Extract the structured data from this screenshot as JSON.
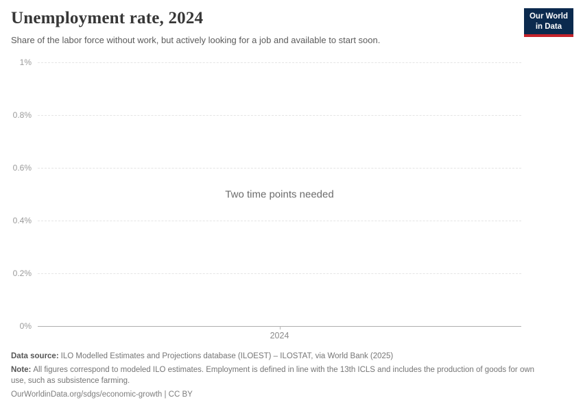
{
  "header": {
    "title": "Unemployment rate, 2024",
    "subtitle": "Share of the labor force without work, but actively looking for a job and available to start soon.",
    "logo": {
      "line1": "Our World",
      "line2": "in Data"
    }
  },
  "chart": {
    "empty_message": "Two time points needed"
  },
  "chart_data": {
    "type": "line",
    "title": "Unemployment rate, 2024",
    "subtitle": "Share of the labor force without work, but actively looking for a job and available to start soon.",
    "series": [],
    "x_ticks": [
      "2024"
    ],
    "y_ticks": [
      "0%",
      "0.2%",
      "0.4%",
      "0.6%",
      "0.8%",
      "1%"
    ],
    "ylim": [
      0,
      1
    ],
    "y_unit": "%",
    "grid": "horizontal-dashed",
    "legend": "none",
    "annotations": [
      "Two time points needed"
    ]
  },
  "footer": {
    "data_source_label": "Data source:",
    "data_source_text": "ILO Modelled Estimates and Projections database (ILOEST) – ILOSTAT, via World Bank (2025)",
    "note_label": "Note:",
    "note_text": "All figures correspond to modeled ILO estimates. Employment is defined in line with the 13th ICLS and includes the production of goods for own use, such as subsistence farming.",
    "citation": "OurWorldinData.org/sdgs/economic-growth | CC BY"
  },
  "colors": {
    "logo_navy": "#0b2a4e",
    "logo_red": "#c5232b",
    "gridline": "#e4e4e4",
    "axis_line": "#aeaeae",
    "tick_label": "#9a9a9a",
    "message_text": "#6b6b6b",
    "title_text": "#373737"
  }
}
